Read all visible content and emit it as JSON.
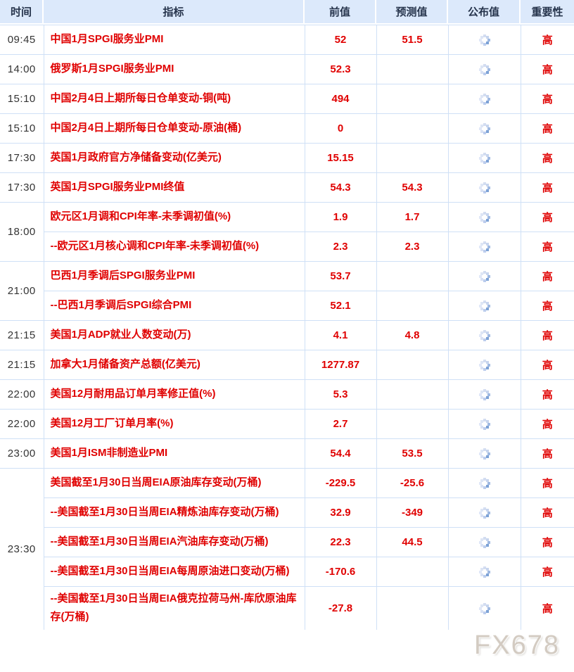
{
  "watermark": "FX678",
  "colors": {
    "header_bg": "#dce9fb",
    "header_text": "#26344c",
    "border": "#cfe0f6",
    "red_text": "#e00000",
    "time_text": "#333333",
    "spinner_light": "#d8e1f4",
    "spinner_dark": "#7da2d6",
    "watermark_text": "#b0a392"
  },
  "table": {
    "columns": [
      {
        "key": "time",
        "label": "时间"
      },
      {
        "key": "indicator",
        "label": "指标"
      },
      {
        "key": "previous",
        "label": "前值"
      },
      {
        "key": "forecast",
        "label": "预测值"
      },
      {
        "key": "published",
        "label": "公布值"
      },
      {
        "key": "importance",
        "label": "重要性"
      }
    ],
    "published_pending_icon": "loading-spinner",
    "rows": [
      {
        "time": "09:45",
        "rowspan": 1,
        "indicator": "中国1月SPGI服务业PMI",
        "previous": "52",
        "forecast": "51.5",
        "published": null,
        "importance": "高"
      },
      {
        "time": "14:00",
        "rowspan": 1,
        "indicator": "俄罗斯1月SPGI服务业PMI",
        "previous": "52.3",
        "forecast": "",
        "published": null,
        "importance": "高"
      },
      {
        "time": "15:10",
        "rowspan": 1,
        "indicator": "中国2月4日上期所每日仓单变动-铜(吨)",
        "previous": "494",
        "forecast": "",
        "published": null,
        "importance": "高"
      },
      {
        "time": "15:10",
        "rowspan": 1,
        "indicator": "中国2月4日上期所每日仓单变动-原油(桶)",
        "previous": "0",
        "forecast": "",
        "published": null,
        "importance": "高"
      },
      {
        "time": "17:30",
        "rowspan": 1,
        "indicator": "英国1月政府官方净储备变动(亿美元)",
        "previous": "15.15",
        "forecast": "",
        "published": null,
        "importance": "高"
      },
      {
        "time": "17:30",
        "rowspan": 1,
        "indicator": "英国1月SPGI服务业PMI终值",
        "previous": "54.3",
        "forecast": "54.3",
        "published": null,
        "importance": "高"
      },
      {
        "time": "18:00",
        "rowspan": 2,
        "indicator": "欧元区1月调和CPI年率-未季调初值(%)",
        "previous": "1.9",
        "forecast": "1.7",
        "published": null,
        "importance": "高"
      },
      {
        "time": null,
        "indicator": "--欧元区1月核心调和CPI年率-未季调初值(%)",
        "previous": "2.3",
        "forecast": "2.3",
        "published": null,
        "importance": "高"
      },
      {
        "time": "21:00",
        "rowspan": 2,
        "indicator": "巴西1月季调后SPGI服务业PMI",
        "previous": "53.7",
        "forecast": "",
        "published": null,
        "importance": "高"
      },
      {
        "time": null,
        "indicator": "--巴西1月季调后SPGI综合PMI",
        "previous": "52.1",
        "forecast": "",
        "published": null,
        "importance": "高"
      },
      {
        "time": "21:15",
        "rowspan": 1,
        "indicator": "美国1月ADP就业人数变动(万)",
        "previous": "4.1",
        "forecast": "4.8",
        "published": null,
        "importance": "高"
      },
      {
        "time": "21:15",
        "rowspan": 1,
        "indicator": "加拿大1月储备资产总额(亿美元)",
        "previous": "1277.87",
        "forecast": "",
        "published": null,
        "importance": "高"
      },
      {
        "time": "22:00",
        "rowspan": 1,
        "indicator": "美国12月耐用品订单月率修正值(%)",
        "previous": "5.3",
        "forecast": "",
        "published": null,
        "importance": "高"
      },
      {
        "time": "22:00",
        "rowspan": 1,
        "indicator": "美国12月工厂订单月率(%)",
        "previous": "2.7",
        "forecast": "",
        "published": null,
        "importance": "高"
      },
      {
        "time": "23:00",
        "rowspan": 1,
        "indicator": "美国1月ISM非制造业PMI",
        "previous": "54.4",
        "forecast": "53.5",
        "published": null,
        "importance": "高"
      },
      {
        "time": "23:30",
        "rowspan": 5,
        "indicator": "美国截至1月30日当周EIA原油库存变动(万桶)",
        "previous": "-229.5",
        "forecast": "-25.6",
        "published": null,
        "importance": "高"
      },
      {
        "time": null,
        "indicator": "--美国截至1月30日当周EIA精炼油库存变动(万桶)",
        "previous": "32.9",
        "forecast": "-349",
        "published": null,
        "importance": "高"
      },
      {
        "time": null,
        "indicator": "--美国截至1月30日当周EIA汽油库存变动(万桶)",
        "previous": "22.3",
        "forecast": "44.5",
        "published": null,
        "importance": "高"
      },
      {
        "time": null,
        "indicator": "--美国截至1月30日当周EIA每周原油进口变动(万桶)",
        "previous": "-170.6",
        "forecast": "",
        "published": null,
        "importance": "高"
      },
      {
        "time": null,
        "indicator": "--美国截至1月30日当周EIA俄克拉荷马州-库欣原油库存(万桶)",
        "previous": "-27.8",
        "forecast": "",
        "published": null,
        "importance": "高"
      }
    ]
  }
}
